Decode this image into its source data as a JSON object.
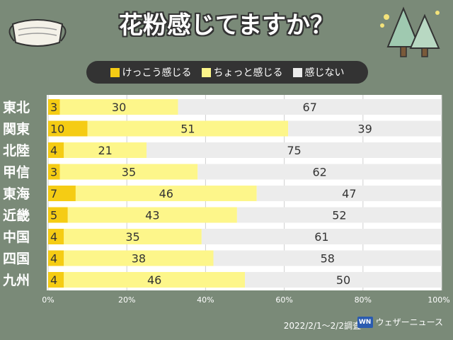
{
  "title": "花粉感じてますか？",
  "legend": [
    {
      "label": "けっこう感じる",
      "color": "#f5cc14"
    },
    {
      "label": "ちょっと感じる",
      "color": "#fdf68a"
    },
    {
      "label": "感じない",
      "color": "#ececec"
    }
  ],
  "note": "2022/2/1～2/2調査",
  "brand": "ウェザーニュース",
  "brand_mark": "WN",
  "chart_data": {
    "type": "bar",
    "orientation": "horizontal",
    "stacked": true,
    "categories": [
      "東北",
      "関東",
      "北陸",
      "甲信",
      "東海",
      "近畿",
      "中国",
      "四国",
      "九州"
    ],
    "series": [
      {
        "name": "けっこう感じる",
        "color": "#f5cc14",
        "values": [
          3,
          10,
          4,
          3,
          7,
          5,
          4,
          4,
          4
        ]
      },
      {
        "name": "ちょっと感じる",
        "color": "#fdf68a",
        "values": [
          30,
          51,
          21,
          35,
          46,
          43,
          35,
          38,
          46
        ]
      },
      {
        "name": "感じない",
        "color": "#ececec",
        "values": [
          67,
          39,
          75,
          62,
          47,
          52,
          61,
          58,
          50
        ]
      }
    ],
    "xlim": [
      0,
      100
    ],
    "xticks": [
      "0%",
      "20%",
      "40%",
      "60%",
      "80%",
      "100%"
    ],
    "grid": true
  }
}
